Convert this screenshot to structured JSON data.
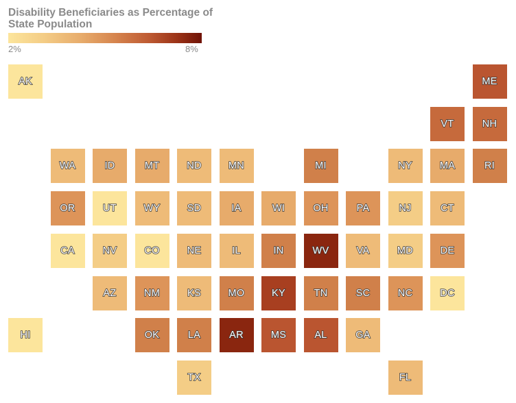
{
  "legend": {
    "title": "Disability Beneficiaries as Percentage of State Population",
    "min_label": "2%",
    "max_label": "8%"
  },
  "colors": {
    "c1": "#fce59c",
    "c2": "#f4cd86",
    "c3": "#eebb78",
    "c4": "#e7ab6b",
    "c5": "#dd9459",
    "c6": "#d0804a",
    "c7": "#c66a3c",
    "c8": "#ba5530",
    "c9": "#a83f20",
    "c10": "#8a260f"
  },
  "states": [
    {
      "abbr": "AK",
      "col": 0,
      "row": 0,
      "color": "c1"
    },
    {
      "abbr": "ME",
      "col": 11,
      "row": 0,
      "color": "c8"
    },
    {
      "abbr": "VT",
      "col": 10,
      "row": 1,
      "color": "c7"
    },
    {
      "abbr": "NH",
      "col": 11,
      "row": 1,
      "color": "c7"
    },
    {
      "abbr": "WA",
      "col": 1,
      "row": 2,
      "color": "c3"
    },
    {
      "abbr": "ID",
      "col": 2,
      "row": 2,
      "color": "c4"
    },
    {
      "abbr": "MT",
      "col": 3,
      "row": 2,
      "color": "c4"
    },
    {
      "abbr": "ND",
      "col": 4,
      "row": 2,
      "color": "c3"
    },
    {
      "abbr": "MN",
      "col": 5,
      "row": 2,
      "color": "c3"
    },
    {
      "abbr": "MI",
      "col": 7,
      "row": 2,
      "color": "c6"
    },
    {
      "abbr": "NY",
      "col": 9,
      "row": 2,
      "color": "c3"
    },
    {
      "abbr": "MA",
      "col": 10,
      "row": 2,
      "color": "c4"
    },
    {
      "abbr": "RI",
      "col": 11,
      "row": 2,
      "color": "c6"
    },
    {
      "abbr": "OR",
      "col": 1,
      "row": 3,
      "color": "c5"
    },
    {
      "abbr": "UT",
      "col": 2,
      "row": 3,
      "color": "c1"
    },
    {
      "abbr": "WY",
      "col": 3,
      "row": 3,
      "color": "c3"
    },
    {
      "abbr": "SD",
      "col": 4,
      "row": 3,
      "color": "c3"
    },
    {
      "abbr": "IA",
      "col": 5,
      "row": 3,
      "color": "c4"
    },
    {
      "abbr": "WI",
      "col": 6,
      "row": 3,
      "color": "c4"
    },
    {
      "abbr": "OH",
      "col": 7,
      "row": 3,
      "color": "c5"
    },
    {
      "abbr": "PA",
      "col": 8,
      "row": 3,
      "color": "c5"
    },
    {
      "abbr": "NJ",
      "col": 9,
      "row": 3,
      "color": "c2"
    },
    {
      "abbr": "CT",
      "col": 10,
      "row": 3,
      "color": "c3"
    },
    {
      "abbr": "CA",
      "col": 1,
      "row": 4,
      "color": "c1"
    },
    {
      "abbr": "NV",
      "col": 2,
      "row": 4,
      "color": "c2"
    },
    {
      "abbr": "CO",
      "col": 3,
      "row": 4,
      "color": "c1"
    },
    {
      "abbr": "NE",
      "col": 4,
      "row": 4,
      "color": "c3"
    },
    {
      "abbr": "IL",
      "col": 5,
      "row": 4,
      "color": "c3"
    },
    {
      "abbr": "IN",
      "col": 6,
      "row": 4,
      "color": "c6"
    },
    {
      "abbr": "WV",
      "col": 7,
      "row": 4,
      "color": "c10"
    },
    {
      "abbr": "VA",
      "col": 8,
      "row": 4,
      "color": "c3"
    },
    {
      "abbr": "MD",
      "col": 9,
      "row": 4,
      "color": "c2"
    },
    {
      "abbr": "DE",
      "col": 10,
      "row": 4,
      "color": "c5"
    },
    {
      "abbr": "AZ",
      "col": 2,
      "row": 5,
      "color": "c3"
    },
    {
      "abbr": "NM",
      "col": 3,
      "row": 5,
      "color": "c5"
    },
    {
      "abbr": "KS",
      "col": 4,
      "row": 5,
      "color": "c3"
    },
    {
      "abbr": "MO",
      "col": 5,
      "row": 5,
      "color": "c6"
    },
    {
      "abbr": "KY",
      "col": 6,
      "row": 5,
      "color": "c9"
    },
    {
      "abbr": "TN",
      "col": 7,
      "row": 5,
      "color": "c6"
    },
    {
      "abbr": "SC",
      "col": 8,
      "row": 5,
      "color": "c6"
    },
    {
      "abbr": "NC",
      "col": 9,
      "row": 5,
      "color": "c5"
    },
    {
      "abbr": "DC",
      "col": 10,
      "row": 5,
      "color": "c1"
    },
    {
      "abbr": "HI",
      "col": 0,
      "row": 6,
      "color": "c1"
    },
    {
      "abbr": "OK",
      "col": 3,
      "row": 6,
      "color": "c6"
    },
    {
      "abbr": "LA",
      "col": 4,
      "row": 6,
      "color": "c6"
    },
    {
      "abbr": "AR",
      "col": 5,
      "row": 6,
      "color": "c10"
    },
    {
      "abbr": "MS",
      "col": 6,
      "row": 6,
      "color": "c8"
    },
    {
      "abbr": "AL",
      "col": 7,
      "row": 6,
      "color": "c8"
    },
    {
      "abbr": "GA",
      "col": 8,
      "row": 6,
      "color": "c3"
    },
    {
      "abbr": "TX",
      "col": 4,
      "row": 7,
      "color": "c2"
    },
    {
      "abbr": "FL",
      "col": 9,
      "row": 7,
      "color": "c3"
    }
  ]
}
